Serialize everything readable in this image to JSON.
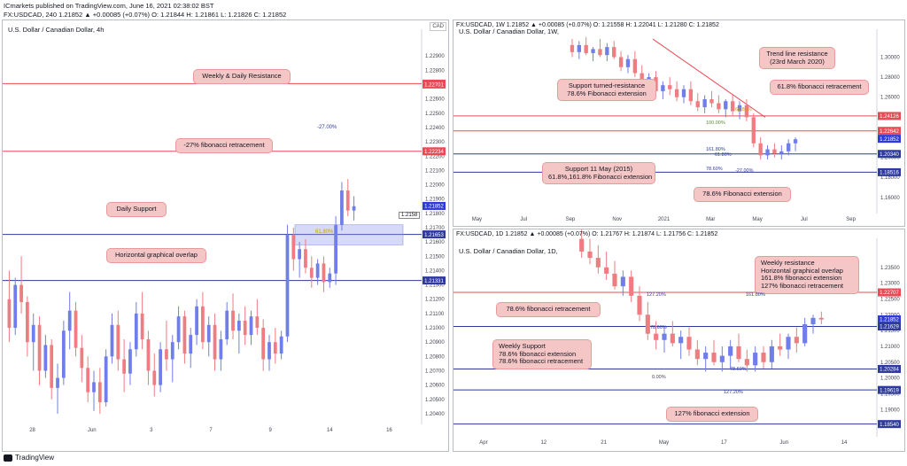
{
  "header": {
    "line1": "ICmarkets published on TradingView.com, June 16, 2021 02:38:02 BST",
    "line2": "FX:USDCAD, 240  1.21852  ▲  +0.00085 (+0.07%)  O: 1.21844  H: 1.21861  L: 1.21826  C: 1.21852"
  },
  "footer": {
    "brand": "TradingView"
  },
  "colors": {
    "up": "#6f7ee8",
    "down": "#ef7c80",
    "callout": "#f5c6c6",
    "resistance": "#e84b55",
    "support": "#2e3a9e"
  },
  "left_panel": {
    "title": "U.S. Dollar / Canadian Dollar, 4h",
    "currency": "CAD",
    "callouts": [
      "Weekly & Daily Resistance",
      "-27% fibonacci retracement",
      "Daily Support",
      "Horizontal graphical overlap"
    ],
    "fib_labels": [
      "-27.00%",
      "61.80%"
    ],
    "hover_price": "1.2158",
    "price_tags": [
      "1.22707",
      "1.22701",
      "1.22234",
      "1.21852",
      "1.21653",
      "1.21331"
    ]
  },
  "weekly_panel": {
    "ohlc": "FX:USDCAD, 1W  1.21852  ▲  +0.00085 (+0.07%)  O: 1.21558  H: 1.22041  L: 1.21280  C: 1.21852",
    "title": "U.S. Dollar / Canadian Dollar, 1W,",
    "callouts": [
      "Trend line resistance\n(23rd March 2020)",
      "Support turned-resistance\n78.6% Fibonacci extension",
      "61.8% fibonacci retracement",
      "Support 11 May (2015)\n61.8%,161.8% Fibonacci extension",
      "78.6% Fibonacci extension"
    ],
    "fib_labels": [
      "61.80%",
      "100.00%",
      "161.80%",
      "61.80%",
      "78.60%",
      "-27.00%"
    ],
    "price_tags": [
      "1.24126",
      "1.22642",
      "1.21852",
      "1.20340",
      "1.18516"
    ]
  },
  "daily_panel": {
    "ohlc": "FX:USDCAD, 1D  1.21852  ▲  +0.00085 (+0.07%)  O: 1.21767  H: 1.21874  L: 1.21756  C: 1.21852",
    "title": "U.S. Dollar / Canadian Dollar, 1D,",
    "callouts": [
      "Weekly resistance\nHorizontal graphical overlap\n161.8% fibonacci extension\n127% fibonacci retracement",
      "78.6% fibonacci retracement",
      "Weekly Support\n78.6% fibonacci extension\n78.6% fibonacci retracement",
      "127% fibonacci extension"
    ],
    "fib_labels": [
      "127.20%",
      "161.80%",
      "78.60%",
      "78.60%",
      "0.00%",
      "127.20%"
    ],
    "price_tags": [
      "1.22707",
      "1.21852",
      "1.21629",
      "1.20284",
      "1.19619",
      "1.18540"
    ]
  },
  "chart_data": [
    {
      "type": "candlestick",
      "title": "U.S. Dollar / Canadian Dollar, 4h",
      "ylim": [
        1.2035,
        1.2305
      ],
      "y_ticks": [
        1.229,
        1.228,
        1.227,
        1.226,
        1.225,
        1.224,
        1.223,
        1.222,
        1.221,
        1.22,
        1.219,
        1.218,
        1.217,
        1.216,
        1.215,
        1.214,
        1.213,
        1.212,
        1.211,
        1.21,
        1.209,
        1.208,
        1.207,
        1.206,
        1.205,
        1.204
      ],
      "x_ticks": [
        "28",
        "Jun",
        "3",
        "7",
        "9",
        "14",
        "16"
      ],
      "levels": [
        {
          "name": "Weekly & Daily Resistance",
          "value": 1.22707
        },
        {
          "name": "-27% fibonacci retracement",
          "value": 1.22234
        },
        {
          "name": "Daily Support",
          "value": 1.21653
        },
        {
          "name": "Horizontal graphical overlap",
          "value": 1.21331
        }
      ],
      "candles": [
        [
          1.212,
          1.214,
          1.209,
          1.21
        ],
        [
          1.21,
          1.2135,
          1.2095,
          1.213
        ],
        [
          1.213,
          1.215,
          1.211,
          1.2118
        ],
        [
          1.2118,
          1.2122,
          1.208,
          1.209
        ],
        [
          1.209,
          1.211,
          1.207,
          1.2102
        ],
        [
          1.2102,
          1.2108,
          1.206,
          1.207
        ],
        [
          1.207,
          1.2095,
          1.2065,
          1.2088
        ],
        [
          1.2088,
          1.2092,
          1.205,
          1.2058
        ],
        [
          1.2058,
          1.2075,
          1.204,
          1.2065
        ],
        [
          1.2065,
          1.2105,
          1.206,
          1.2098
        ],
        [
          1.2098,
          1.2125,
          1.2085,
          1.2112
        ],
        [
          1.2112,
          1.2118,
          1.208,
          1.2086
        ],
        [
          1.2086,
          1.2095,
          1.2062,
          1.2072
        ],
        [
          1.2072,
          1.208,
          1.2048,
          1.2055
        ],
        [
          1.2055,
          1.207,
          1.2042,
          1.2062
        ],
        [
          1.2062,
          1.2072,
          1.204,
          1.2048
        ],
        [
          1.2048,
          1.2085,
          1.2045,
          1.208
        ],
        [
          1.208,
          1.211,
          1.2075,
          1.2102
        ],
        [
          1.2102,
          1.2112,
          1.207,
          1.2078
        ],
        [
          1.2078,
          1.2092,
          1.2055,
          1.2068
        ],
        [
          1.2068,
          1.209,
          1.206,
          1.2085
        ],
        [
          1.2085,
          1.2118,
          1.208,
          1.211
        ],
        [
          1.211,
          1.2125,
          1.2085,
          1.2092
        ],
        [
          1.2092,
          1.2098,
          1.206,
          1.207
        ],
        [
          1.207,
          1.2082,
          1.2052,
          1.206
        ],
        [
          1.206,
          1.209,
          1.2055,
          1.2085
        ],
        [
          1.2085,
          1.2105,
          1.207,
          1.2078
        ],
        [
          1.2078,
          1.2095,
          1.2062,
          1.209
        ],
        [
          1.209,
          1.2115,
          1.2085,
          1.2108
        ],
        [
          1.2108,
          1.2112,
          1.2075,
          1.2082
        ],
        [
          1.2082,
          1.21,
          1.2072,
          1.2095
        ],
        [
          1.2095,
          1.212,
          1.2088,
          1.2115
        ],
        [
          1.2115,
          1.2125,
          1.2085,
          1.209
        ],
        [
          1.209,
          1.2108,
          1.208,
          1.2102
        ],
        [
          1.2102,
          1.211,
          1.207,
          1.2078
        ],
        [
          1.2078,
          1.2098,
          1.207,
          1.2092
        ],
        [
          1.2092,
          1.2118,
          1.2088,
          1.2112
        ],
        [
          1.2112,
          1.2124,
          1.2092,
          1.2098
        ],
        [
          1.2098,
          1.211,
          1.2082,
          1.2105
        ],
        [
          1.2105,
          1.2115,
          1.2088,
          1.2095
        ],
        [
          1.2095,
          1.2112,
          1.2088,
          1.2108
        ],
        [
          1.2108,
          1.212,
          1.2095,
          1.21
        ],
        [
          1.21,
          1.2106,
          1.207,
          1.2078
        ],
        [
          1.2078,
          1.2095,
          1.207,
          1.209
        ],
        [
          1.209,
          1.21,
          1.2075,
          1.2082
        ],
        [
          1.2082,
          1.2098,
          1.2078,
          1.2094
        ],
        [
          1.2094,
          1.2172,
          1.209,
          1.2165
        ],
        [
          1.2165,
          1.217,
          1.214,
          1.2148
        ],
        [
          1.2148,
          1.216,
          1.2135,
          1.2155
        ],
        [
          1.2155,
          1.2162,
          1.2138,
          1.2142
        ],
        [
          1.2142,
          1.215,
          1.2128,
          1.2135
        ],
        [
          1.2135,
          1.2148,
          1.213,
          1.2145
        ],
        [
          1.2145,
          1.215,
          1.2125,
          1.2132
        ],
        [
          1.2132,
          1.2142,
          1.2128,
          1.2138
        ],
        [
          1.2138,
          1.2178,
          1.213,
          1.2172
        ],
        [
          1.2172,
          1.2202,
          1.2168,
          1.2196
        ],
        [
          1.2196,
          1.2204,
          1.2178,
          1.2182
        ],
        [
          1.2182,
          1.2192,
          1.2175,
          1.2185
        ]
      ]
    },
    {
      "type": "candlestick",
      "title": "U.S. Dollar / Canadian Dollar, 1W,",
      "ylim": [
        1.1475,
        1.3225
      ],
      "y_ticks": [
        1.3,
        1.28,
        1.26,
        1.24,
        1.22,
        1.2,
        1.18,
        1.16
      ],
      "x_ticks": [
        "May",
        "Jul",
        "Sep",
        "Nov",
        "2021",
        "Mar",
        "May",
        "Jul",
        "Sep"
      ],
      "levels": [
        {
          "name": "61.8% fibonacci retracement",
          "value": 1.24126
        },
        {
          "name": "Support turned-resistance 78.6% Fibonacci extension",
          "value": 1.22642
        },
        {
          "name": "Support 11 May (2015) 61.8%,161.8% Fibonacci extension",
          "value": 1.2034
        },
        {
          "name": "78.6% Fibonacci extension",
          "value": 1.18516
        }
      ],
      "trendline": {
        "name": "Trend line resistance (23rd March 2020)",
        "from": [
          "Sep",
          1.318
        ],
        "to": [
          "May",
          1.24
        ]
      },
      "candles": [
        [
          1.312,
          1.318,
          1.3,
          1.305
        ],
        [
          1.305,
          1.316,
          1.298,
          1.312
        ],
        [
          1.312,
          1.32,
          1.302,
          1.304
        ],
        [
          1.304,
          1.31,
          1.296,
          1.308
        ],
        [
          1.308,
          1.318,
          1.3,
          1.302
        ],
        [
          1.302,
          1.314,
          1.296,
          1.31
        ],
        [
          1.31,
          1.316,
          1.298,
          1.3
        ],
        [
          1.3,
          1.306,
          1.286,
          1.29
        ],
        [
          1.29,
          1.302,
          1.284,
          1.298
        ],
        [
          1.298,
          1.306,
          1.28,
          1.284
        ],
        [
          1.284,
          1.292,
          1.27,
          1.276
        ],
        [
          1.276,
          1.284,
          1.266,
          1.28
        ],
        [
          1.28,
          1.286,
          1.262,
          1.266
        ],
        [
          1.266,
          1.276,
          1.258,
          1.272
        ],
        [
          1.272,
          1.28,
          1.262,
          1.268
        ],
        [
          1.268,
          1.276,
          1.256,
          1.26
        ],
        [
          1.26,
          1.272,
          1.254,
          1.268
        ],
        [
          1.268,
          1.276,
          1.252,
          1.256
        ],
        [
          1.256,
          1.264,
          1.246,
          1.25
        ],
        [
          1.25,
          1.262,
          1.244,
          1.258
        ],
        [
          1.258,
          1.266,
          1.25,
          1.254
        ],
        [
          1.254,
          1.262,
          1.244,
          1.248
        ],
        [
          1.248,
          1.258,
          1.24,
          1.256
        ],
        [
          1.256,
          1.262,
          1.242,
          1.246
        ],
        [
          1.246,
          1.256,
          1.238,
          1.252
        ],
        [
          1.252,
          1.258,
          1.236,
          1.24
        ],
        [
          1.24,
          1.244,
          1.21,
          1.214
        ],
        [
          1.214,
          1.22,
          1.198,
          1.202
        ],
        [
          1.202,
          1.212,
          1.198,
          1.208
        ],
        [
          1.208,
          1.214,
          1.2,
          1.204
        ],
        [
          1.204,
          1.212,
          1.198,
          1.206
        ],
        [
          1.206,
          1.218,
          1.202,
          1.214
        ],
        [
          1.214,
          1.22,
          1.206,
          1.218
        ]
      ]
    },
    {
      "type": "candlestick",
      "title": "U.S. Dollar / Canadian Dollar, 1D,",
      "ylim": [
        1.1825,
        1.2425
      ],
      "y_ticks": [
        1.235,
        1.23,
        1.225,
        1.22,
        1.215,
        1.21,
        1.205,
        1.2,
        1.195,
        1.19
      ],
      "x_ticks": [
        "Apr",
        "12",
        "21",
        "May",
        "17",
        "Jun",
        "14"
      ],
      "levels": [
        {
          "name": "Weekly resistance / Horizontal graphical overlap / 161.8% fibonacci extension / 127% fibonacci retracement",
          "value": 1.22707
        },
        {
          "name": "78.6% fibonacci retracement",
          "value": 1.21629
        },
        {
          "name": "Weekly Support / 78.6% fibonacci extension / 78.6% fibonacci retracement",
          "value": 1.20284
        },
        {
          "name": "127% fibonacci extension",
          "value": 1.19619
        },
        {
          "name": "",
          "value": 1.1854
        }
      ],
      "candles": [
        [
          1.244,
          1.247,
          1.238,
          1.24
        ],
        [
          1.24,
          1.244,
          1.236,
          1.238
        ],
        [
          1.238,
          1.242,
          1.233,
          1.235
        ],
        [
          1.235,
          1.24,
          1.231,
          1.233
        ],
        [
          1.233,
          1.237,
          1.228,
          1.229
        ],
        [
          1.229,
          1.234,
          1.226,
          1.232
        ],
        [
          1.232,
          1.234,
          1.224,
          1.226
        ],
        [
          1.226,
          1.229,
          1.218,
          1.22
        ],
        [
          1.22,
          1.224,
          1.212,
          1.214
        ],
        [
          1.214,
          1.218,
          1.209,
          1.212
        ],
        [
          1.212,
          1.216,
          1.208,
          1.214
        ],
        [
          1.214,
          1.218,
          1.21,
          1.211
        ],
        [
          1.211,
          1.215,
          1.206,
          1.213
        ],
        [
          1.213,
          1.216,
          1.207,
          1.209
        ],
        [
          1.209,
          1.212,
          1.204,
          1.206
        ],
        [
          1.206,
          1.21,
          1.202,
          1.208
        ],
        [
          1.208,
          1.212,
          1.204,
          1.205
        ],
        [
          1.205,
          1.21,
          1.202,
          1.207
        ],
        [
          1.207,
          1.212,
          1.203,
          1.21
        ],
        [
          1.21,
          1.214,
          1.205,
          1.206
        ],
        [
          1.206,
          1.209,
          1.202,
          1.204
        ],
        [
          1.204,
          1.21,
          1.202,
          1.208
        ],
        [
          1.208,
          1.21,
          1.203,
          1.205
        ],
        [
          1.205,
          1.212,
          1.203,
          1.21
        ],
        [
          1.21,
          1.214,
          1.207,
          1.209
        ],
        [
          1.209,
          1.214,
          1.206,
          1.213
        ],
        [
          1.213,
          1.216,
          1.208,
          1.211
        ],
        [
          1.211,
          1.219,
          1.21,
          1.217
        ],
        [
          1.217,
          1.22,
          1.214,
          1.219
        ],
        [
          1.219,
          1.221,
          1.217,
          1.2185
        ]
      ]
    }
  ]
}
